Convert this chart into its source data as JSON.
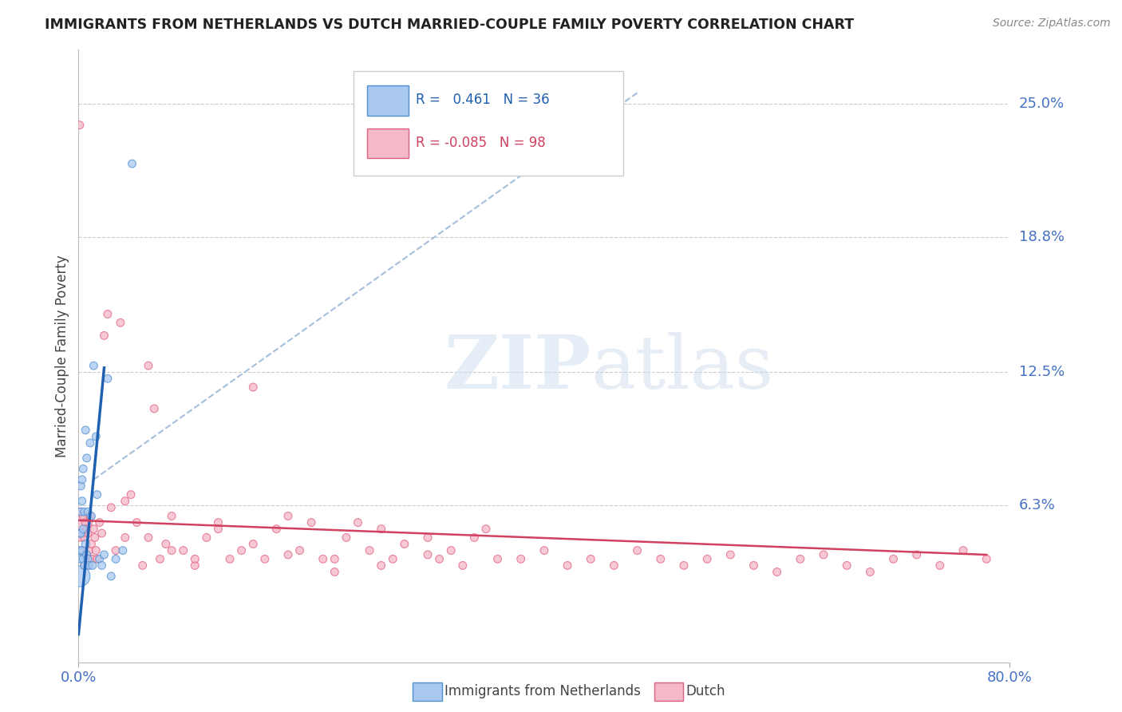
{
  "title": "IMMIGRANTS FROM NETHERLANDS VS DUTCH MARRIED-COUPLE FAMILY POVERTY CORRELATION CHART",
  "source": "Source: ZipAtlas.com",
  "ylabel": "Married-Couple Family Poverty",
  "xlim": [
    0.0,
    0.8
  ],
  "ylim": [
    -0.01,
    0.275
  ],
  "ytick_values": [
    0.063,
    0.125,
    0.188,
    0.25
  ],
  "ytick_labels": [
    "6.3%",
    "12.5%",
    "18.8%",
    "25.0%"
  ],
  "r_blue": 0.461,
  "n_blue": 36,
  "r_pink": -0.085,
  "n_pink": 98,
  "blue_color": "#A8C8F0",
  "pink_color": "#F5B8C8",
  "blue_edge_color": "#5090D0",
  "pink_edge_color": "#E06080",
  "blue_line_color": "#2060B0",
  "pink_line_color": "#D04060",
  "dash_line_color": "#9BB8D8",
  "legend_label_blue": "Immigrants from Netherlands",
  "legend_label_pink": "Dutch",
  "background_color": "#FFFFFF",
  "title_color": "#222222",
  "axis_label_color": "#444444",
  "tick_label_color": "#4472C4",
  "grid_color": "#CCCCCC",
  "blue_dots_x": [
    0.001,
    0.001,
    0.001,
    0.002,
    0.002,
    0.002,
    0.002,
    0.003,
    0.003,
    0.003,
    0.004,
    0.004,
    0.004,
    0.005,
    0.005,
    0.006,
    0.006,
    0.007,
    0.007,
    0.008,
    0.008,
    0.009,
    0.01,
    0.011,
    0.012,
    0.013,
    0.015,
    0.016,
    0.018,
    0.02,
    0.022,
    0.025,
    0.028,
    0.032,
    0.038,
    0.046
  ],
  "blue_dots_y": [
    0.03,
    0.042,
    0.05,
    0.038,
    0.06,
    0.072,
    0.05,
    0.042,
    0.065,
    0.075,
    0.038,
    0.052,
    0.08,
    0.035,
    0.06,
    0.045,
    0.098,
    0.04,
    0.085,
    0.038,
    0.06,
    0.035,
    0.092,
    0.058,
    0.035,
    0.128,
    0.095,
    0.068,
    0.038,
    0.035,
    0.04,
    0.122,
    0.03,
    0.038,
    0.042,
    0.222
  ],
  "blue_dots_size": [
    50,
    50,
    50,
    50,
    50,
    50,
    50,
    50,
    50,
    50,
    50,
    50,
    50,
    50,
    50,
    50,
    50,
    50,
    50,
    50,
    50,
    50,
    50,
    50,
    50,
    50,
    50,
    50,
    50,
    50,
    50,
    50,
    50,
    50,
    50,
    50
  ],
  "blue_large_idx": 0,
  "blue_large_size": 350,
  "pink_dots_x": [
    0.001,
    0.001,
    0.002,
    0.002,
    0.003,
    0.004,
    0.004,
    0.005,
    0.005,
    0.006,
    0.006,
    0.007,
    0.007,
    0.008,
    0.008,
    0.009,
    0.01,
    0.01,
    0.011,
    0.012,
    0.013,
    0.014,
    0.015,
    0.016,
    0.018,
    0.02,
    0.022,
    0.025,
    0.028,
    0.032,
    0.036,
    0.04,
    0.045,
    0.05,
    0.055,
    0.06,
    0.065,
    0.07,
    0.075,
    0.08,
    0.09,
    0.1,
    0.11,
    0.12,
    0.13,
    0.14,
    0.15,
    0.16,
    0.17,
    0.18,
    0.19,
    0.2,
    0.21,
    0.22,
    0.23,
    0.24,
    0.25,
    0.26,
    0.27,
    0.28,
    0.3,
    0.31,
    0.32,
    0.33,
    0.34,
    0.35,
    0.36,
    0.38,
    0.4,
    0.42,
    0.44,
    0.46,
    0.48,
    0.5,
    0.52,
    0.54,
    0.56,
    0.58,
    0.6,
    0.62,
    0.64,
    0.66,
    0.68,
    0.7,
    0.72,
    0.74,
    0.76,
    0.78,
    0.04,
    0.06,
    0.08,
    0.1,
    0.12,
    0.15,
    0.18,
    0.22,
    0.26,
    0.3
  ],
  "pink_dots_y": [
    0.055,
    0.24,
    0.048,
    0.06,
    0.05,
    0.042,
    0.058,
    0.035,
    0.048,
    0.04,
    0.055,
    0.038,
    0.052,
    0.035,
    0.05,
    0.042,
    0.038,
    0.058,
    0.045,
    0.038,
    0.052,
    0.048,
    0.042,
    0.038,
    0.055,
    0.05,
    0.142,
    0.152,
    0.062,
    0.042,
    0.148,
    0.048,
    0.068,
    0.055,
    0.035,
    0.048,
    0.108,
    0.038,
    0.045,
    0.058,
    0.042,
    0.035,
    0.048,
    0.055,
    0.038,
    0.042,
    0.118,
    0.038,
    0.052,
    0.058,
    0.042,
    0.055,
    0.038,
    0.032,
    0.048,
    0.055,
    0.042,
    0.052,
    0.038,
    0.045,
    0.048,
    0.038,
    0.042,
    0.035,
    0.048,
    0.052,
    0.038,
    0.038,
    0.042,
    0.035,
    0.038,
    0.035,
    0.042,
    0.038,
    0.035,
    0.038,
    0.04,
    0.035,
    0.032,
    0.038,
    0.04,
    0.035,
    0.032,
    0.038,
    0.04,
    0.035,
    0.042,
    0.038,
    0.065,
    0.128,
    0.042,
    0.038,
    0.052,
    0.045,
    0.04,
    0.038,
    0.035,
    0.04
  ],
  "pink_dots_size": [
    50,
    50,
    50,
    50,
    50,
    50,
    50,
    50,
    50,
    50,
    50,
    50,
    50,
    50,
    50,
    50,
    50,
    50,
    50,
    50,
    50,
    50,
    50,
    50,
    50,
    50,
    50,
    50,
    50,
    50,
    50,
    50,
    50,
    50,
    50,
    50,
    50,
    50,
    50,
    50,
    50,
    50,
    50,
    50,
    50,
    50,
    50,
    50,
    50,
    50,
    50,
    50,
    50,
    50,
    50,
    50,
    50,
    50,
    50,
    50,
    50,
    50,
    50,
    50,
    50,
    50,
    50,
    50,
    50,
    50,
    50,
    50,
    50,
    50,
    50,
    50,
    50,
    50,
    50,
    50,
    50,
    50,
    50,
    50,
    50,
    50,
    50,
    50,
    50,
    50,
    50,
    50,
    50,
    50,
    50,
    50,
    50,
    50
  ],
  "pink_large_idx": 0,
  "pink_large_size": 500,
  "blue_line_x": [
    0.0,
    0.022
  ],
  "blue_line_y": [
    0.003,
    0.127
  ],
  "dash_line_x": [
    0.013,
    0.48
  ],
  "dash_line_y": [
    0.075,
    0.255
  ],
  "pink_line_x": [
    0.0,
    0.78
  ],
  "pink_line_y": [
    0.056,
    0.04
  ]
}
